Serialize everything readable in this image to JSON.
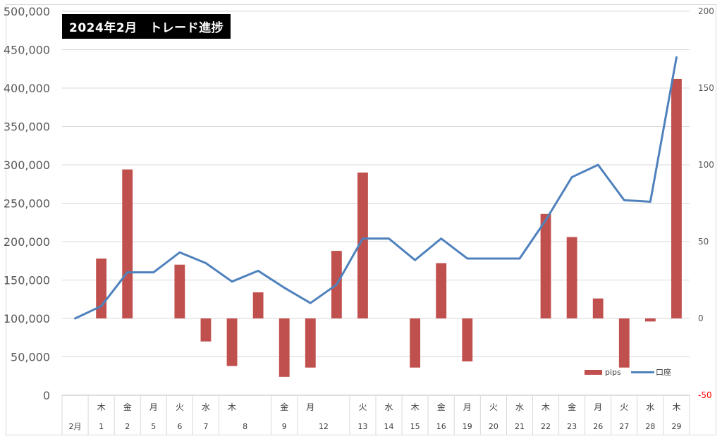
{
  "chart_data": {
    "type": "bar+line",
    "title": "2024年2月　トレード進捗",
    "categories": [
      "2月",
      "1",
      "2",
      "5",
      "6",
      "7",
      "8",
      "",
      "9",
      "12",
      "",
      "13",
      "14",
      "15",
      "16",
      "19",
      "20",
      "21",
      "22",
      "23",
      "26",
      "27",
      "28",
      "29"
    ],
    "weekdays": [
      "",
      "木",
      "金",
      "月",
      "火",
      "水",
      "木",
      "",
      "金",
      "月",
      "",
      "火",
      "水",
      "木",
      "金",
      "月",
      "火",
      "水",
      "木",
      "金",
      "月",
      "火",
      "水",
      "木"
    ],
    "series": [
      {
        "name": "pips",
        "type": "bar",
        "axis": "right",
        "color": "#c0504d",
        "values": [
          null,
          39,
          97,
          null,
          35,
          -15,
          -31,
          17,
          -38,
          -32,
          44,
          95,
          null,
          -32,
          36,
          -28,
          null,
          null,
          68,
          53,
          13,
          -32,
          -2,
          156
        ]
      },
      {
        "name": "口座",
        "type": "line",
        "axis": "right",
        "color": "#4f81bd",
        "values": [
          0,
          8,
          30,
          30,
          43,
          36,
          24,
          31,
          20,
          10,
          22,
          52,
          52,
          38,
          52,
          39,
          39,
          39,
          64,
          92,
          100,
          77,
          76,
          170
        ]
      }
    ],
    "y_left": {
      "min": 0,
      "max": 500000,
      "step": 50000,
      "ticks": [
        "0",
        "50,000",
        "100,000",
        "150,000",
        "200,000",
        "250,000",
        "300,000",
        "350,000",
        "400,000",
        "450,000",
        "500,000"
      ]
    },
    "y_right": {
      "min": -50,
      "max": 200,
      "step": 50,
      "ticks": [
        "-50",
        "0",
        "50",
        "100",
        "150",
        "200"
      ]
    },
    "grid": true,
    "legend_position": "bottom-right",
    "colors": {
      "bar": "#c0504d",
      "line": "#4f81bd",
      "grid": "#d9d9d9",
      "negative_tick": "#ff0000"
    }
  }
}
